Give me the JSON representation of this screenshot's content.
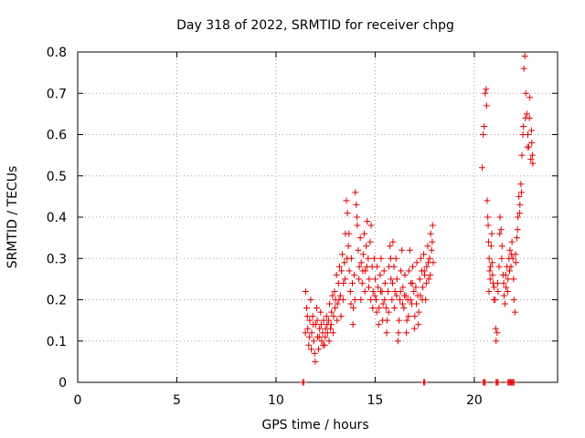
{
  "chart_data": {
    "type": "scatter",
    "title": "Day 318 of 2022, SRMTID for receiver chpg",
    "xlabel": "GPS time / hours",
    "ylabel": "SRMTID / TECUs",
    "xlim": [
      0,
      24.2
    ],
    "ylim": [
      0,
      0.8
    ],
    "x_ticks": [
      0,
      5,
      10,
      15,
      20
    ],
    "x_tick_labels": [
      "0",
      "5",
      "10",
      "15",
      "20"
    ],
    "y_ticks": [
      0,
      0.1,
      0.2,
      0.3,
      0.4,
      0.5,
      0.6,
      0.7,
      0.8
    ],
    "y_tick_labels": [
      "0",
      "0.1",
      "0.2",
      "0.3",
      "0.4",
      "0.5",
      "0.6",
      "0.7",
      "0.8"
    ],
    "grid": true,
    "marker": "+",
    "color": "#e00000",
    "series": [
      {
        "name": "SRMTID",
        "points": [
          [
            11.35,
            0.0
          ],
          [
            11.4,
            0.0
          ],
          [
            17.45,
            0.0
          ],
          [
            17.5,
            0.0
          ],
          [
            20.45,
            0.0
          ],
          [
            20.5,
            0.0
          ],
          [
            20.55,
            0.0
          ],
          [
            21.1,
            0.0
          ],
          [
            21.15,
            0.0
          ],
          [
            21.2,
            0.0
          ],
          [
            21.7,
            0.0
          ],
          [
            21.75,
            0.0
          ],
          [
            21.8,
            0.0
          ],
          [
            21.85,
            0.0
          ],
          [
            21.9,
            0.0
          ],
          [
            21.95,
            0.0
          ],
          [
            22.0,
            0.0
          ],
          [
            11.5,
            0.22
          ],
          [
            11.55,
            0.18
          ],
          [
            11.6,
            0.13
          ],
          [
            11.65,
            0.09
          ],
          [
            11.7,
            0.15
          ],
          [
            11.75,
            0.2
          ],
          [
            11.8,
            0.12
          ],
          [
            11.85,
            0.16
          ],
          [
            11.9,
            0.1
          ],
          [
            11.95,
            0.07
          ],
          [
            12.0,
            0.14
          ],
          [
            12.05,
            0.18
          ],
          [
            12.1,
            0.11
          ],
          [
            12.15,
            0.08
          ],
          [
            12.2,
            0.13
          ],
          [
            12.25,
            0.17
          ],
          [
            12.3,
            0.1
          ],
          [
            12.35,
            0.12
          ],
          [
            12.4,
            0.15
          ],
          [
            12.45,
            0.09
          ],
          [
            12.5,
            0.13
          ],
          [
            12.55,
            0.16
          ],
          [
            12.6,
            0.12
          ],
          [
            12.65,
            0.15
          ],
          [
            12.7,
            0.19
          ],
          [
            12.75,
            0.13
          ],
          [
            12.8,
            0.17
          ],
          [
            12.85,
            0.21
          ],
          [
            12.9,
            0.16
          ],
          [
            12.95,
            0.22
          ],
          [
            13.0,
            0.2
          ],
          [
            13.05,
            0.26
          ],
          [
            13.1,
            0.19
          ],
          [
            13.15,
            0.24
          ],
          [
            13.2,
            0.28
          ],
          [
            13.25,
            0.21
          ],
          [
            13.3,
            0.27
          ],
          [
            13.35,
            0.31
          ],
          [
            13.4,
            0.24
          ],
          [
            13.45,
            0.29
          ],
          [
            13.5,
            0.36
          ],
          [
            13.55,
            0.44
          ],
          [
            13.6,
            0.41
          ],
          [
            13.65,
            0.33
          ],
          [
            13.7,
            0.27
          ],
          [
            13.75,
            0.22
          ],
          [
            13.8,
            0.3
          ],
          [
            13.85,
            0.24
          ],
          [
            13.9,
            0.18
          ],
          [
            13.95,
            0.26
          ],
          [
            14.0,
            0.46
          ],
          [
            14.05,
            0.43
          ],
          [
            14.1,
            0.38
          ],
          [
            14.15,
            0.32
          ],
          [
            14.2,
            0.28
          ],
          [
            14.25,
            0.35
          ],
          [
            14.3,
            0.29
          ],
          [
            14.35,
            0.24
          ],
          [
            14.4,
            0.31
          ],
          [
            14.45,
            0.36
          ],
          [
            14.5,
            0.27
          ],
          [
            14.55,
            0.33
          ],
          [
            14.6,
            0.39
          ],
          [
            14.65,
            0.3
          ],
          [
            14.7,
            0.25
          ],
          [
            14.75,
            0.34
          ],
          [
            14.8,
            0.38
          ],
          [
            14.85,
            0.28
          ],
          [
            14.9,
            0.22
          ],
          [
            14.95,
            0.3
          ],
          [
            15.0,
            0.25
          ],
          [
            15.05,
            0.2
          ],
          [
            15.1,
            0.28
          ],
          [
            15.15,
            0.23
          ],
          [
            15.2,
            0.18
          ],
          [
            15.25,
            0.26
          ],
          [
            15.3,
            0.3
          ],
          [
            15.35,
            0.22
          ],
          [
            15.4,
            0.19
          ],
          [
            15.45,
            0.27
          ],
          [
            15.5,
            0.24
          ],
          [
            15.55,
            0.18
          ],
          [
            15.6,
            0.15
          ],
          [
            15.65,
            0.22
          ],
          [
            15.7,
            0.28
          ],
          [
            15.75,
            0.33
          ],
          [
            15.8,
            0.25
          ],
          [
            15.85,
            0.2
          ],
          [
            15.9,
            0.34
          ],
          [
            15.95,
            0.28
          ],
          [
            16.0,
            0.22
          ],
          [
            16.05,
            0.3
          ],
          [
            16.1,
            0.25
          ],
          [
            16.15,
            0.1
          ],
          [
            16.2,
            0.15
          ],
          [
            16.25,
            0.2
          ],
          [
            16.3,
            0.27
          ],
          [
            16.35,
            0.32
          ],
          [
            16.4,
            0.23
          ],
          [
            16.45,
            0.18
          ],
          [
            16.5,
            0.26
          ],
          [
            16.55,
            0.21
          ],
          [
            16.6,
            0.15
          ],
          [
            16.65,
            0.2
          ],
          [
            16.7,
            0.27
          ],
          [
            16.75,
            0.32
          ],
          [
            16.8,
            0.24
          ],
          [
            16.85,
            0.19
          ],
          [
            16.9,
            0.28
          ],
          [
            16.95,
            0.22
          ],
          [
            17.0,
            0.16
          ],
          [
            17.05,
            0.23
          ],
          [
            17.1,
            0.29
          ],
          [
            17.15,
            0.21
          ],
          [
            17.2,
            0.17
          ],
          [
            17.25,
            0.25
          ],
          [
            17.3,
            0.3
          ],
          [
            17.35,
            0.27
          ],
          [
            17.4,
            0.23
          ],
          [
            17.45,
            0.31
          ],
          [
            17.5,
            0.26
          ],
          [
            17.55,
            0.2
          ],
          [
            17.6,
            0.28
          ],
          [
            17.65,
            0.33
          ],
          [
            17.7,
            0.25
          ],
          [
            17.75,
            0.3
          ],
          [
            17.8,
            0.36
          ],
          [
            17.85,
            0.32
          ],
          [
            17.9,
            0.38
          ],
          [
            11.48,
            0.12
          ],
          [
            11.58,
            0.16
          ],
          [
            11.68,
            0.11
          ],
          [
            11.78,
            0.08
          ],
          [
            11.88,
            0.14
          ],
          [
            11.98,
            0.05
          ],
          [
            12.08,
            0.15
          ],
          [
            12.18,
            0.11
          ],
          [
            12.28,
            0.14
          ],
          [
            12.38,
            0.09
          ],
          [
            12.48,
            0.11
          ],
          [
            12.58,
            0.14
          ],
          [
            12.68,
            0.1
          ],
          [
            12.78,
            0.14
          ],
          [
            12.88,
            0.12
          ],
          [
            12.98,
            0.18
          ],
          [
            13.08,
            0.15
          ],
          [
            13.18,
            0.2
          ],
          [
            13.28,
            0.16
          ],
          [
            13.38,
            0.2
          ],
          [
            13.48,
            0.25
          ],
          [
            13.58,
            0.3
          ],
          [
            13.68,
            0.36
          ],
          [
            13.78,
            0.19
          ],
          [
            13.88,
            0.14
          ],
          [
            13.98,
            0.2
          ],
          [
            14.08,
            0.4
          ],
          [
            14.18,
            0.25
          ],
          [
            14.28,
            0.2
          ],
          [
            14.38,
            0.27
          ],
          [
            14.48,
            0.22
          ],
          [
            14.58,
            0.28
          ],
          [
            14.68,
            0.23
          ],
          [
            14.78,
            0.2
          ],
          [
            14.88,
            0.18
          ],
          [
            14.98,
            0.21
          ],
          [
            15.08,
            0.17
          ],
          [
            15.18,
            0.14
          ],
          [
            15.28,
            0.22
          ],
          [
            15.38,
            0.15
          ],
          [
            15.48,
            0.2
          ],
          [
            15.58,
            0.12
          ],
          [
            15.68,
            0.17
          ],
          [
            15.78,
            0.3
          ],
          [
            15.88,
            0.24
          ],
          [
            15.98,
            0.18
          ],
          [
            16.08,
            0.21
          ],
          [
            16.18,
            0.12
          ],
          [
            16.28,
            0.22
          ],
          [
            16.38,
            0.19
          ],
          [
            16.48,
            0.21
          ],
          [
            16.58,
            0.12
          ],
          [
            16.68,
            0.16
          ],
          [
            16.78,
            0.2
          ],
          [
            16.88,
            0.24
          ],
          [
            16.98,
            0.13
          ],
          [
            17.08,
            0.19
          ],
          [
            17.18,
            0.14
          ],
          [
            17.28,
            0.21
          ],
          [
            17.38,
            0.2
          ],
          [
            17.48,
            0.27
          ],
          [
            17.58,
            0.24
          ],
          [
            17.68,
            0.29
          ],
          [
            17.78,
            0.26
          ],
          [
            17.88,
            0.34
          ],
          [
            17.93,
            0.29
          ],
          [
            20.4,
            0.52
          ],
          [
            20.45,
            0.6
          ],
          [
            20.5,
            0.62
          ],
          [
            20.55,
            0.7
          ],
          [
            20.6,
            0.71
          ],
          [
            20.62,
            0.67
          ],
          [
            20.65,
            0.44
          ],
          [
            20.7,
            0.38
          ],
          [
            20.72,
            0.34
          ],
          [
            20.75,
            0.3
          ],
          [
            20.78,
            0.27
          ],
          [
            20.8,
            0.25
          ],
          [
            20.85,
            0.33
          ],
          [
            20.9,
            0.29
          ],
          [
            20.95,
            0.24
          ],
          [
            21.0,
            0.23
          ],
          [
            21.05,
            0.2
          ],
          [
            21.1,
            0.1
          ],
          [
            21.15,
            0.12
          ],
          [
            21.2,
            0.22
          ],
          [
            21.25,
            0.28
          ],
          [
            21.3,
            0.4
          ],
          [
            21.35,
            0.37
          ],
          [
            21.4,
            0.33
          ],
          [
            21.45,
            0.26
          ],
          [
            21.5,
            0.21
          ],
          [
            21.55,
            0.19
          ],
          [
            21.6,
            0.23
          ],
          [
            21.65,
            0.28
          ],
          [
            21.7,
            0.25
          ],
          [
            21.75,
            0.3
          ],
          [
            21.8,
            0.32
          ],
          [
            21.85,
            0.28
          ],
          [
            21.9,
            0.34
          ],
          [
            21.95,
            0.3
          ],
          [
            22.0,
            0.2
          ],
          [
            22.05,
            0.17
          ],
          [
            22.1,
            0.29
          ],
          [
            22.15,
            0.35
          ],
          [
            22.2,
            0.4
          ],
          [
            22.25,
            0.45
          ],
          [
            22.3,
            0.43
          ],
          [
            22.35,
            0.48
          ],
          [
            22.4,
            0.55
          ],
          [
            22.45,
            0.6
          ],
          [
            22.5,
            0.76
          ],
          [
            22.55,
            0.79
          ],
          [
            22.6,
            0.7
          ],
          [
            22.65,
            0.65
          ],
          [
            22.7,
            0.6
          ],
          [
            22.75,
            0.57
          ],
          [
            22.8,
            0.69
          ],
          [
            22.85,
            0.54
          ],
          [
            22.9,
            0.58
          ],
          [
            22.95,
            0.53
          ],
          [
            20.68,
            0.4
          ],
          [
            20.74,
            0.22
          ],
          [
            20.82,
            0.28
          ],
          [
            20.88,
            0.36
          ],
          [
            20.92,
            0.26
          ],
          [
            20.98,
            0.2
          ],
          [
            21.08,
            0.13
          ],
          [
            21.18,
            0.24
          ],
          [
            21.28,
            0.36
          ],
          [
            21.38,
            0.3
          ],
          [
            21.48,
            0.24
          ],
          [
            21.58,
            0.26
          ],
          [
            21.68,
            0.22
          ],
          [
            21.78,
            0.27
          ],
          [
            21.88,
            0.31
          ],
          [
            21.98,
            0.25
          ],
          [
            22.08,
            0.31
          ],
          [
            22.18,
            0.37
          ],
          [
            22.28,
            0.41
          ],
          [
            22.38,
            0.46
          ],
          [
            22.48,
            0.62
          ],
          [
            22.58,
            0.64
          ],
          [
            22.68,
            0.57
          ],
          [
            22.78,
            0.64
          ],
          [
            22.88,
            0.61
          ],
          [
            22.93,
            0.55
          ]
        ]
      }
    ]
  }
}
